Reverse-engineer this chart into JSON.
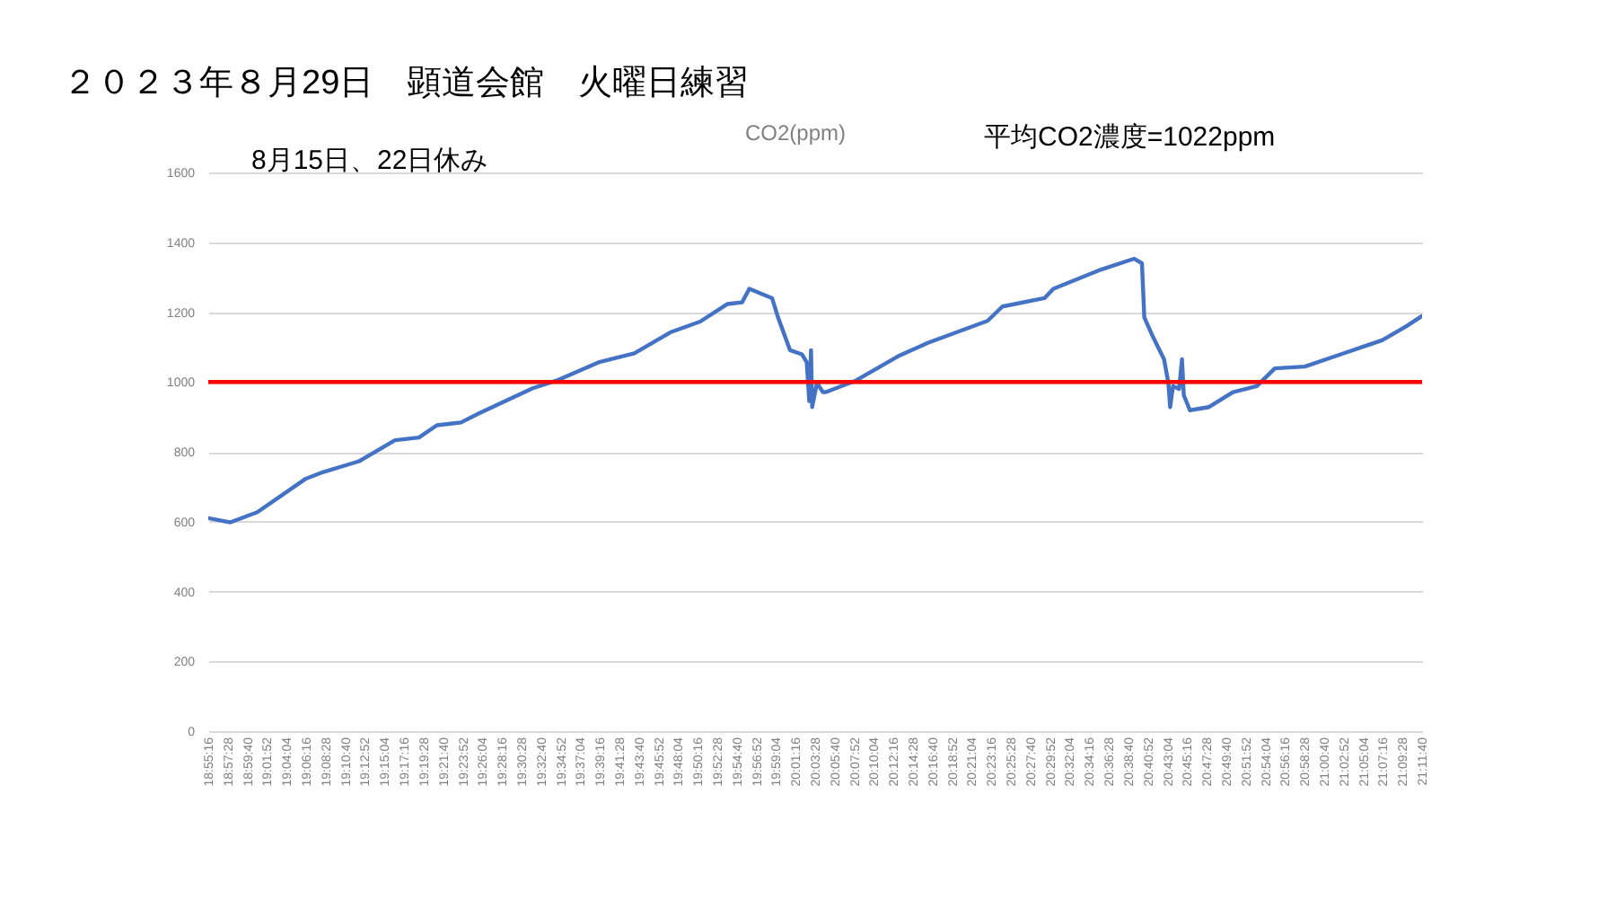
{
  "chart_data": {
    "type": "line",
    "title": "２０２３年８月29日　顕道会館　火曜日練習",
    "subtitle": "CO2(ppm)",
    "annotations": [
      "8月15日、22日休み",
      "平均CO2濃度=1022ppm"
    ],
    "x": [
      18.9211,
      18.9625,
      19.0129,
      19.1027,
      19.1363,
      19.2036,
      19.2708,
      19.3156,
      19.3492,
      19.3943,
      19.4279,
      19.5288,
      19.5735,
      19.6519,
      19.7191,
      19.7864,
      19.8425,
      19.893,
      19.9209,
      19.9344,
      19.9771,
      19.9882,
      20.0107,
      20.0332,
      20.042,
      20.0467,
      20.05,
      20.0521,
      20.0611,
      20.0722,
      20.0779,
      20.1341,
      20.2125,
      20.2686,
      20.3806,
      20.4085,
      20.4872,
      20.504,
      20.5935,
      20.6554,
      20.6698,
      20.6742,
      20.689,
      20.7112,
      20.7193,
      20.7226,
      20.728,
      20.7394,
      20.7448,
      20.7482,
      20.7596,
      20.7953,
      20.8403,
      20.885,
      20.9187,
      20.9748,
      21.0421,
      21.1204,
      21.1652,
      21.1934
    ],
    "series": [
      {
        "color": "#4472c4",
        "values": [
          610,
          598,
          627,
          722,
          742,
          773,
          833,
          841,
          876,
          884,
          910,
          982,
          1004,
          1056,
          1082,
          1142,
          1173,
          1223,
          1228,
          1267,
          1240,
          1185,
          1091,
          1079,
          1056,
          945,
          1091,
          928,
          997,
          971,
          971,
          1004,
          1073,
          1112,
          1175,
          1216,
          1240,
          1267,
          1322,
          1353,
          1340,
          1185,
          1134,
          1065,
          997,
          928,
          988,
          980,
          1065,
          962,
          919,
          928,
          971,
          988,
          1039,
          1044,
          1079,
          1120,
          1160,
          1188
        ]
      }
    ],
    "xlim": [
      18.9211,
      21.1944
    ],
    "xticks": [
      {
        "value": 18.9211,
        "label": "18:55:16"
      },
      {
        "value": 18.9578,
        "label": "18:57:28"
      },
      {
        "value": 18.9944,
        "label": "18:59:40"
      },
      {
        "value": 19.0311,
        "label": "19:01:52"
      },
      {
        "value": 19.0678,
        "label": "19:04:04"
      },
      {
        "value": 19.1044,
        "label": "19:06:16"
      },
      {
        "value": 19.1411,
        "label": "19:08:28"
      },
      {
        "value": 19.1778,
        "label": "19:10:40"
      },
      {
        "value": 19.2144,
        "label": "19:12:52"
      },
      {
        "value": 19.2511,
        "label": "19:15:04"
      },
      {
        "value": 19.2878,
        "label": "19:17:16"
      },
      {
        "value": 19.3244,
        "label": "19:19:28"
      },
      {
        "value": 19.3611,
        "label": "19:21:40"
      },
      {
        "value": 19.3978,
        "label": "19:23:52"
      },
      {
        "value": 19.4344,
        "label": "19:26:04"
      },
      {
        "value": 19.4711,
        "label": "19:28:16"
      },
      {
        "value": 19.5078,
        "label": "19:30:28"
      },
      {
        "value": 19.5444,
        "label": "19:32:40"
      },
      {
        "value": 19.5811,
        "label": "19:34:52"
      },
      {
        "value": 19.6178,
        "label": "19:37:04"
      },
      {
        "value": 19.6544,
        "label": "19:39:16"
      },
      {
        "value": 19.6911,
        "label": "19:41:28"
      },
      {
        "value": 19.7278,
        "label": "19:43:40"
      },
      {
        "value": 19.7644,
        "label": "19:45:52"
      },
      {
        "value": 19.8011,
        "label": "19:48:04"
      },
      {
        "value": 19.8378,
        "label": "19:50:16"
      },
      {
        "value": 19.8744,
        "label": "19:52:28"
      },
      {
        "value": 19.9111,
        "label": "19:54:40"
      },
      {
        "value": 19.9478,
        "label": "19:56:52"
      },
      {
        "value": 19.9844,
        "label": "19:59:04"
      },
      {
        "value": 20.0211,
        "label": "20:01:16"
      },
      {
        "value": 20.0578,
        "label": "20:03:28"
      },
      {
        "value": 20.0944,
        "label": "20:05:40"
      },
      {
        "value": 20.1311,
        "label": "20:07:52"
      },
      {
        "value": 20.1678,
        "label": "20:10:04"
      },
      {
        "value": 20.2044,
        "label": "20:12:16"
      },
      {
        "value": 20.2411,
        "label": "20:14:28"
      },
      {
        "value": 20.2778,
        "label": "20:16:40"
      },
      {
        "value": 20.3144,
        "label": "20:18:52"
      },
      {
        "value": 20.3511,
        "label": "20:21:04"
      },
      {
        "value": 20.3878,
        "label": "20:23:16"
      },
      {
        "value": 20.4244,
        "label": "20:25:28"
      },
      {
        "value": 20.4611,
        "label": "20:27:40"
      },
      {
        "value": 20.4978,
        "label": "20:29:52"
      },
      {
        "value": 20.5344,
        "label": "20:32:04"
      },
      {
        "value": 20.5711,
        "label": "20:34:16"
      },
      {
        "value": 20.6078,
        "label": "20:36:28"
      },
      {
        "value": 20.6444,
        "label": "20:38:40"
      },
      {
        "value": 20.6811,
        "label": "20:40:52"
      },
      {
        "value": 20.7178,
        "label": "20:43:04"
      },
      {
        "value": 20.7544,
        "label": "20:45:16"
      },
      {
        "value": 20.7911,
        "label": "20:47:28"
      },
      {
        "value": 20.8278,
        "label": "20:49:40"
      },
      {
        "value": 20.8644,
        "label": "20:51:52"
      },
      {
        "value": 20.9011,
        "label": "20:54:04"
      },
      {
        "value": 20.9378,
        "label": "20:56:16"
      },
      {
        "value": 20.9744,
        "label": "20:58:28"
      },
      {
        "value": 21.0111,
        "label": "21:00:40"
      },
      {
        "value": 21.0478,
        "label": "21:02:52"
      },
      {
        "value": 21.0844,
        "label": "21:05:04"
      },
      {
        "value": 21.1211,
        "label": "21:07:16"
      },
      {
        "value": 21.1578,
        "label": "21:09:28"
      },
      {
        "value": 21.1944,
        "label": "21:11:40"
      }
    ],
    "ylim": [
      0,
      1600
    ],
    "yticks": [
      0,
      200,
      400,
      600,
      800,
      1000,
      1200,
      1400,
      1600
    ],
    "ref_lines": [
      {
        "axis": "y",
        "value": 1000,
        "color": "#ff0000"
      }
    ],
    "grid": "y",
    "marker": "none",
    "line_style": "solid"
  }
}
